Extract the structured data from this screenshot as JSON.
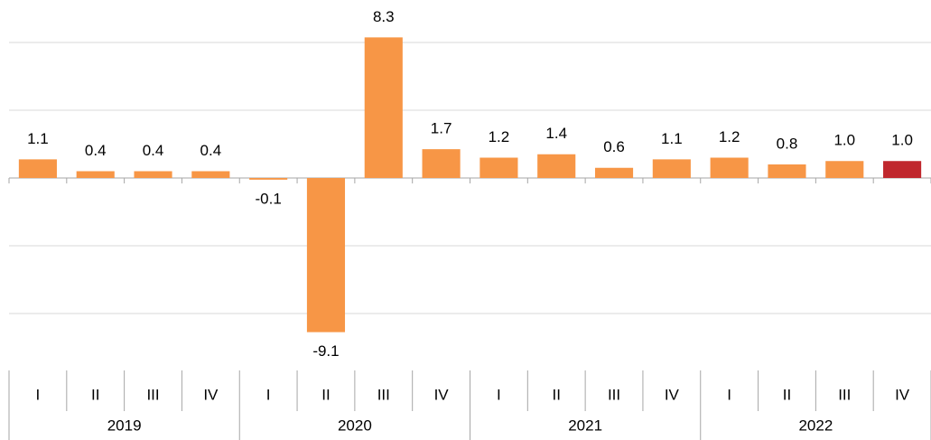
{
  "chart_data": {
    "type": "bar",
    "categories": [
      "I",
      "II",
      "III",
      "IV",
      "I",
      "II",
      "III",
      "IV",
      "I",
      "II",
      "III",
      "IV",
      "I",
      "II",
      "III",
      "IV"
    ],
    "x_groups": [
      "2019",
      "2020",
      "2021",
      "2022"
    ],
    "values": [
      1.1,
      0.4,
      0.4,
      0.4,
      -0.1,
      -9.1,
      8.3,
      1.7,
      1.2,
      1.4,
      0.6,
      1.1,
      1.2,
      0.8,
      1.0,
      1.0
    ],
    "value_labels": [
      "1.1",
      "0.4",
      "0.4",
      "0.4",
      "-0.1",
      "-9.1",
      "8.3",
      "1.7",
      "1.2",
      "1.4",
      "0.6",
      "1.1",
      "1.2",
      "0.8",
      "1.0",
      "1.0"
    ],
    "colors": [
      "#f79646",
      "#f79646",
      "#f79646",
      "#f79646",
      "#f79646",
      "#f79646",
      "#f79646",
      "#f79646",
      "#f79646",
      "#f79646",
      "#f79646",
      "#f79646",
      "#f79646",
      "#f79646",
      "#f79646",
      "#c0272d"
    ],
    "ylim": [
      -10,
      10
    ],
    "yticks": [
      -8,
      -4,
      0,
      4,
      8
    ],
    "grid": true
  }
}
